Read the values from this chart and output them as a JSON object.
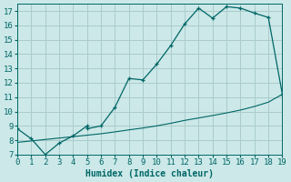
{
  "xlabel": "Humidex (Indice chaleur)",
  "background_color": "#cce8e8",
  "grid_color": "#aacccc",
  "line_color": "#006666",
  "xlim": [
    0,
    19
  ],
  "ylim": [
    7,
    17.5
  ],
  "xticks": [
    0,
    1,
    2,
    3,
    4,
    5,
    6,
    7,
    8,
    9,
    10,
    11,
    12,
    13,
    14,
    15,
    16,
    17,
    18,
    19
  ],
  "yticks": [
    7,
    8,
    9,
    10,
    11,
    12,
    13,
    14,
    15,
    16,
    17
  ],
  "curve1_x": [
    0,
    1,
    2,
    3,
    4,
    5,
    5,
    6,
    7,
    8,
    9,
    10,
    11,
    12,
    13,
    14,
    15,
    16,
    17,
    18,
    19
  ],
  "curve1_y": [
    8.8,
    8.1,
    7.0,
    7.8,
    8.3,
    9.0,
    8.8,
    9.0,
    10.3,
    12.3,
    12.2,
    13.3,
    14.6,
    16.1,
    17.2,
    16.5,
    17.3,
    17.2,
    16.85,
    16.55,
    11.2
  ],
  "curve1_markers_x": [
    0,
    1,
    2,
    3,
    4,
    5,
    6,
    7,
    8,
    9,
    10,
    11,
    12,
    13,
    14,
    15,
    16,
    17,
    18,
    19
  ],
  "curve1_markers_y": [
    8.8,
    8.1,
    7.0,
    7.8,
    8.3,
    9.0,
    9.0,
    10.3,
    12.3,
    12.2,
    13.3,
    14.6,
    16.1,
    17.2,
    16.5,
    17.3,
    17.2,
    16.85,
    16.55,
    11.2
  ],
  "curve2_x": [
    0,
    1,
    2,
    3,
    4,
    5,
    6,
    7,
    8,
    9,
    10,
    11,
    12,
    13,
    14,
    15,
    16,
    17,
    18,
    19
  ],
  "curve2_y": [
    7.85,
    7.95,
    8.05,
    8.15,
    8.25,
    8.35,
    8.45,
    8.58,
    8.72,
    8.85,
    9.0,
    9.18,
    9.38,
    9.55,
    9.72,
    9.9,
    10.1,
    10.35,
    10.65,
    11.2
  ],
  "font_size": 7,
  "tick_font_size": 6.5
}
